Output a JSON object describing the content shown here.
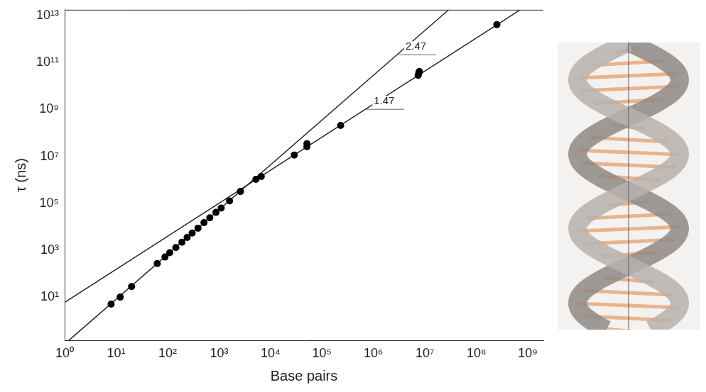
{
  "chart_data": {
    "type": "scatter",
    "x_label": "Base pairs",
    "y_label": "τ (ns)",
    "log": true,
    "grid": false,
    "xlim": [
      1,
      2000000000
    ],
    "ylim": [
      0.14,
      18000000000000
    ],
    "xticks": [
      {
        "value": 1,
        "label": "10⁰"
      },
      {
        "value": 10,
        "label": "10¹"
      },
      {
        "value": 100,
        "label": "10²"
      },
      {
        "value": 1000,
        "label": "10³"
      },
      {
        "value": 10000,
        "label": "10⁴"
      },
      {
        "value": 100000,
        "label": "10⁵"
      },
      {
        "value": 1000000,
        "label": "10⁶"
      },
      {
        "value": 10000000,
        "label": "10⁷"
      },
      {
        "value": 100000000,
        "label": "10⁸"
      },
      {
        "value": 1000000000,
        "label": "10⁹"
      }
    ],
    "yticks": [
      {
        "value": 10,
        "label": "10¹"
      },
      {
        "value": 1000,
        "label": "10³"
      },
      {
        "value": 100000,
        "label": "10⁵"
      },
      {
        "value": 10000000,
        "label": "10⁷"
      },
      {
        "value": 1000000000,
        "label": "10⁹"
      },
      {
        "value": 100000000000,
        "label": "10¹¹"
      },
      {
        "value": 10000000000000,
        "label": "10¹³"
      }
    ],
    "series": [
      {
        "type": "scatter",
        "marker": "circle",
        "color": "#000000",
        "x": [
          8,
          12,
          20,
          63,
          89,
          110,
          145,
          190,
          240,
          300,
          390,
          510,
          660,
          870,
          1100,
          1600,
          2600,
          5200,
          6600,
          29000,
          51000,
          51000,
          230000,
          7400000,
          7600000,
          7800000,
          250000000
        ],
        "values": [
          5,
          10,
          28,
          270,
          510,
          780,
          1300,
          2200,
          3500,
          5400,
          8700,
          15000,
          24000,
          41000,
          63000,
          126000,
          320000,
          1050000,
          1400000,
          11500000,
          26000000,
          35000000,
          210000000,
          29000000000,
          36000000000,
          42000000000,
          4200000000000
        ]
      },
      {
        "type": "line",
        "line_style": "solid",
        "color": "#222222",
        "x": [
          1.2,
          29000000
        ],
        "values": [
          0.14,
          18000000000000
        ],
        "annotation": "2.47"
      },
      {
        "type": "line",
        "line_style": "solid",
        "color": "#222222",
        "x": [
          1,
          710000000
        ],
        "values": [
          5.9,
          18000000000000
        ],
        "annotation": "1.47"
      }
    ]
  }
}
